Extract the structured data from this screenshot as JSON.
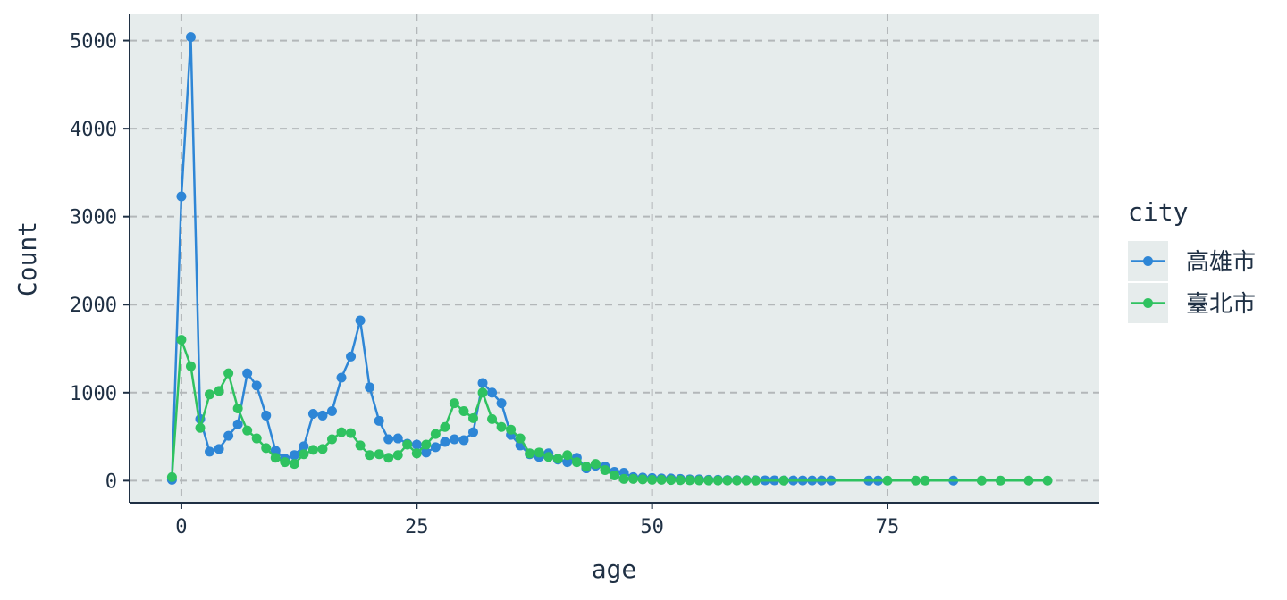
{
  "chart_data": {
    "type": "line",
    "xlabel": "age",
    "ylabel": "Count",
    "xlim": [
      -5.5,
      97.5
    ],
    "ylim": [
      -250,
      5300
    ],
    "x_ticks": [
      0,
      25,
      50,
      75
    ],
    "x_tick_labels": [
      "0",
      "25",
      "50",
      "75"
    ],
    "y_ticks": [
      0,
      1000,
      2000,
      3000,
      4000,
      5000
    ],
    "y_tick_labels": [
      "0",
      "1000",
      "2000",
      "3000",
      "4000",
      "5000"
    ],
    "grid": true,
    "panel_background": "#e6ecec",
    "legend": {
      "title": "city",
      "position": "right"
    },
    "series": [
      {
        "name": "高雄市",
        "color": "#2e86d6",
        "x": [
          -1,
          0,
          1,
          2,
          3,
          4,
          5,
          6,
          7,
          8,
          9,
          10,
          11,
          12,
          13,
          14,
          15,
          16,
          17,
          18,
          19,
          20,
          21,
          22,
          23,
          24,
          25,
          26,
          27,
          28,
          29,
          30,
          31,
          32,
          33,
          34,
          35,
          36,
          37,
          38,
          39,
          40,
          41,
          42,
          43,
          44,
          45,
          46,
          47,
          48,
          49,
          50,
          51,
          52,
          53,
          54,
          55,
          56,
          57,
          58,
          59,
          60,
          61,
          62,
          63,
          64,
          65,
          66,
          67,
          68,
          69,
          73,
          74,
          82
        ],
        "y": [
          10,
          3230,
          5040,
          700,
          330,
          360,
          510,
          640,
          1220,
          1080,
          740,
          340,
          250,
          290,
          390,
          760,
          740,
          790,
          1170,
          1410,
          1820,
          1060,
          680,
          470,
          480,
          420,
          410,
          320,
          380,
          440,
          470,
          460,
          550,
          1110,
          1000,
          880,
          520,
          400,
          300,
          270,
          310,
          240,
          210,
          260,
          140,
          170,
          160,
          100,
          90,
          40,
          35,
          30,
          25,
          25,
          20,
          15,
          15,
          10,
          10,
          8,
          6,
          6,
          5,
          4,
          4,
          3,
          3,
          3,
          2,
          2,
          2,
          1,
          1,
          1
        ]
      },
      {
        "name": "臺北市",
        "color": "#2fc260",
        "x": [
          -1,
          0,
          1,
          2,
          3,
          4,
          5,
          6,
          7,
          8,
          9,
          10,
          11,
          12,
          13,
          14,
          15,
          16,
          17,
          18,
          19,
          20,
          21,
          22,
          23,
          24,
          25,
          26,
          27,
          28,
          29,
          30,
          31,
          32,
          33,
          34,
          35,
          36,
          37,
          38,
          39,
          40,
          41,
          42,
          43,
          44,
          45,
          46,
          47,
          48,
          49,
          50,
          51,
          52,
          53,
          54,
          55,
          56,
          57,
          58,
          59,
          60,
          61,
          64,
          75,
          78,
          79,
          85,
          87,
          90,
          92
        ],
        "y": [
          40,
          1600,
          1300,
          600,
          980,
          1020,
          1220,
          820,
          570,
          480,
          370,
          260,
          210,
          190,
          300,
          350,
          360,
          470,
          550,
          540,
          400,
          290,
          300,
          260,
          290,
          410,
          310,
          410,
          530,
          610,
          880,
          790,
          710,
          1000,
          700,
          610,
          580,
          480,
          310,
          320,
          270,
          250,
          290,
          210,
          160,
          190,
          120,
          60,
          20,
          20,
          15,
          10,
          10,
          8,
          6,
          5,
          4,
          3,
          3,
          2,
          2,
          2,
          1,
          1,
          1,
          1,
          1,
          1,
          1,
          1,
          1
        ]
      }
    ]
  }
}
